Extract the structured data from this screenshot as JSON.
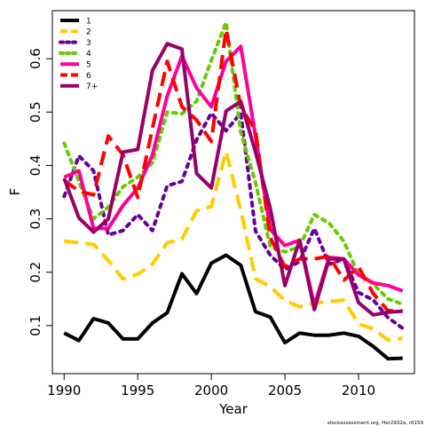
{
  "chart_data": {
    "type": "line",
    "xlabel": "Year",
    "ylabel": "F",
    "xlim": [
      1989.2,
      2013.8
    ],
    "ylim": [
      0.01,
      0.69
    ],
    "x_ticks": [
      1990,
      1995,
      2000,
      2005,
      2010
    ],
    "y_ticks": [
      0.1,
      0.2,
      0.3,
      0.4,
      0.5,
      0.6
    ],
    "x_tick_labels": [
      "1990",
      "1995",
      "2000",
      "2005",
      "2010"
    ],
    "y_tick_labels": [
      "0.1",
      "0.2",
      "0.3",
      "0.4",
      "0.5",
      "0.6"
    ],
    "legend_position": "top-left",
    "credit": "stockassessment.org, Her2932a, r6159",
    "x": [
      1990,
      1991,
      1992,
      1993,
      1994,
      1995,
      1996,
      1997,
      1998,
      1999,
      2000,
      2001,
      2002,
      2003,
      2004,
      2005,
      2006,
      2007,
      2008,
      2009,
      2010,
      2011,
      2012,
      2013
    ],
    "series": [
      {
        "name": "1",
        "color": "#000000",
        "dash": "solid",
        "values": [
          0.086,
          0.072,
          0.113,
          0.105,
          0.075,
          0.075,
          0.105,
          0.124,
          0.197,
          0.16,
          0.217,
          0.232,
          0.213,
          0.126,
          0.116,
          0.068,
          0.086,
          0.082,
          0.082,
          0.086,
          0.08,
          0.061,
          0.038,
          0.039
        ]
      },
      {
        "name": "2",
        "color": "#FFCC00",
        "dash": "dashed",
        "values": [
          0.258,
          0.255,
          0.252,
          0.222,
          0.187,
          0.196,
          0.215,
          0.255,
          0.262,
          0.315,
          0.323,
          0.426,
          0.316,
          0.188,
          0.173,
          0.147,
          0.135,
          0.142,
          0.145,
          0.148,
          0.103,
          0.094,
          0.073,
          0.076
        ]
      },
      {
        "name": "3",
        "color": "#660099",
        "dash": "dotted",
        "values": [
          0.342,
          0.418,
          0.39,
          0.27,
          0.278,
          0.308,
          0.278,
          0.362,
          0.37,
          0.448,
          0.498,
          0.465,
          0.498,
          0.277,
          0.232,
          0.205,
          0.22,
          0.282,
          0.215,
          0.225,
          0.162,
          0.148,
          0.115,
          0.095
        ]
      },
      {
        "name": "4",
        "color": "#66CC00",
        "dash": "dotted",
        "values": [
          0.442,
          0.37,
          0.3,
          0.322,
          0.36,
          0.378,
          0.405,
          0.5,
          0.497,
          0.52,
          0.597,
          0.668,
          0.462,
          0.368,
          0.248,
          0.238,
          0.248,
          0.308,
          0.292,
          0.258,
          0.195,
          0.178,
          0.15,
          0.14
        ]
      },
      {
        "name": "5",
        "color": "#FF0099",
        "dash": "solid",
        "values": [
          0.378,
          0.39,
          0.282,
          0.282,
          0.325,
          0.358,
          0.42,
          0.53,
          0.605,
          0.545,
          0.51,
          0.595,
          0.623,
          0.455,
          0.28,
          0.25,
          0.26,
          0.138,
          0.228,
          0.225,
          0.195,
          0.18,
          0.175,
          0.165
        ]
      },
      {
        "name": "6",
        "color": "#FF0000",
        "dash": "dashed",
        "values": [
          0.372,
          0.352,
          0.345,
          0.455,
          0.42,
          0.34,
          0.47,
          0.595,
          0.51,
          0.485,
          0.445,
          0.655,
          0.51,
          0.465,
          0.265,
          0.21,
          0.225,
          0.225,
          0.23,
          0.185,
          0.21,
          0.16,
          0.128,
          0.127
        ]
      },
      {
        "name": "7+",
        "color": "#990066",
        "dash": "solid",
        "values": [
          0.376,
          0.302,
          0.275,
          0.3,
          0.425,
          0.43,
          0.578,
          0.628,
          0.618,
          0.385,
          0.358,
          0.502,
          0.52,
          0.425,
          0.32,
          0.175,
          0.26,
          0.13,
          0.225,
          0.225,
          0.143,
          0.12,
          0.125,
          0.127
        ]
      }
    ]
  }
}
